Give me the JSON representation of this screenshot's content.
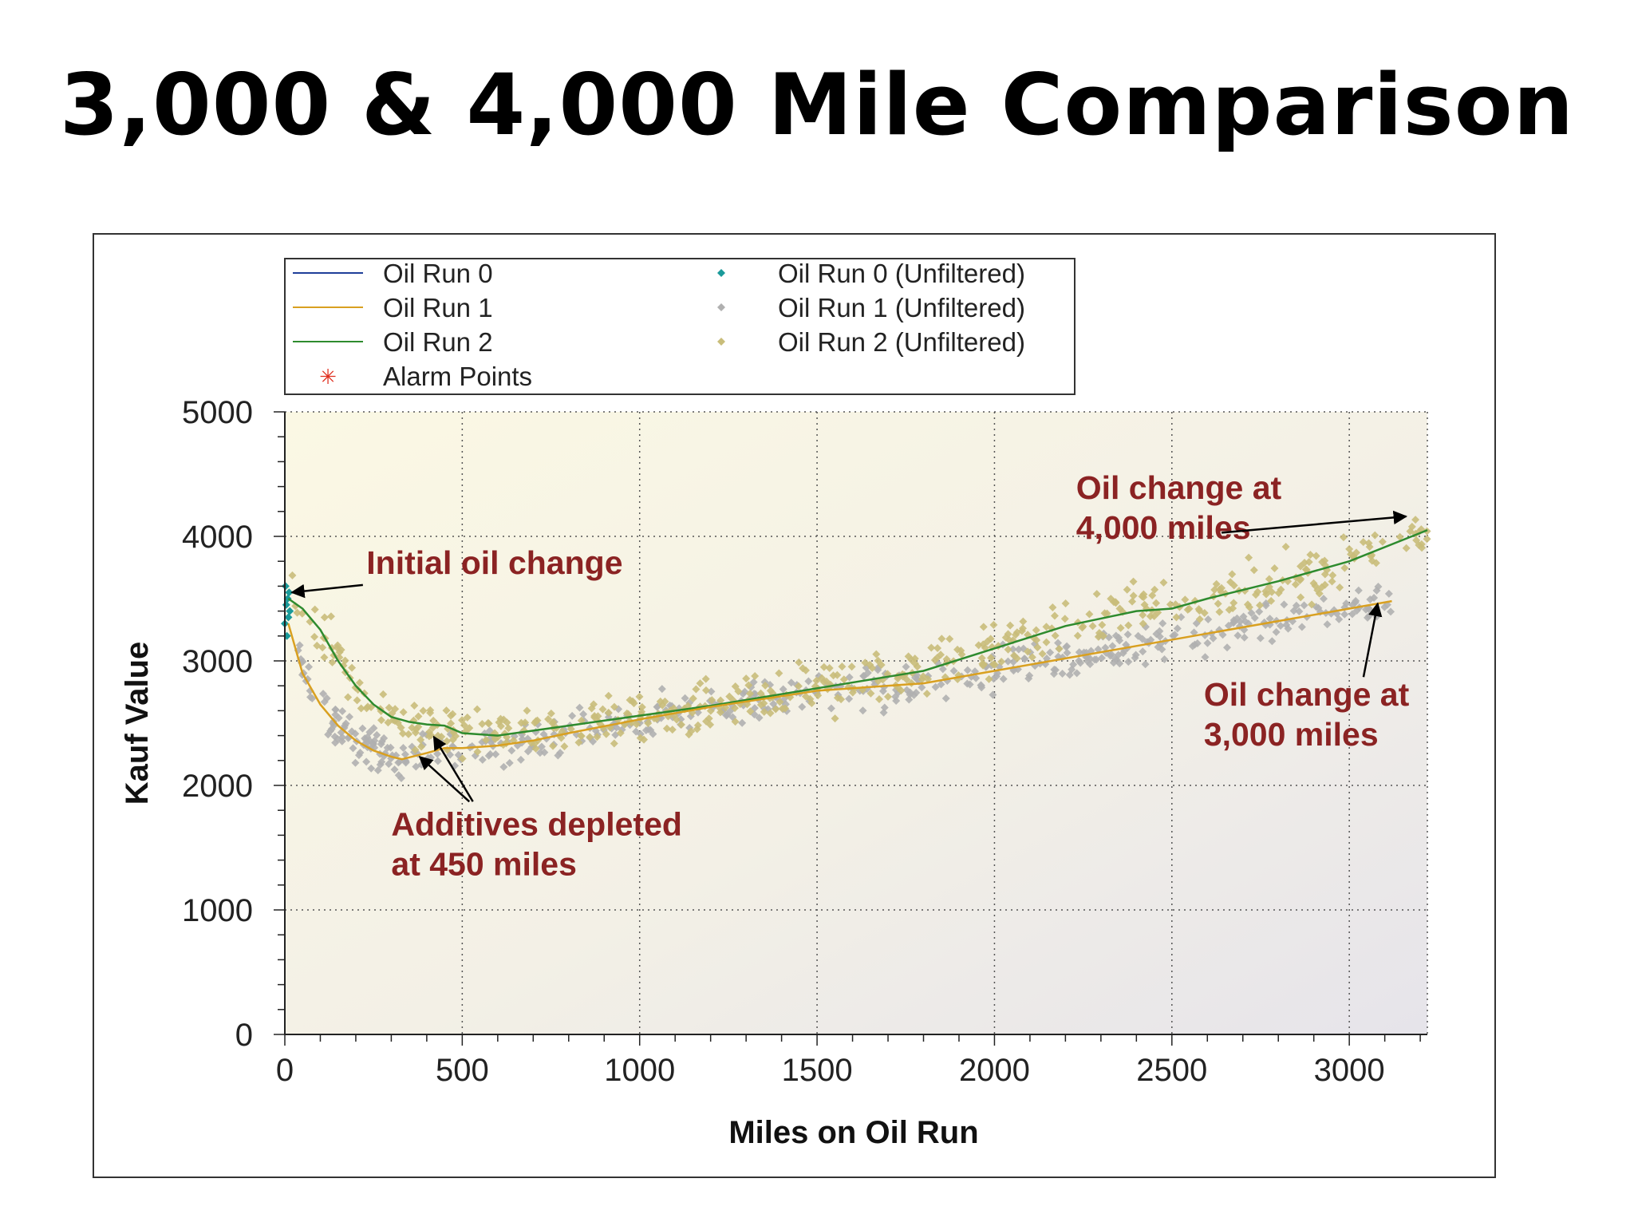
{
  "title": "3,000 & 4,000 Mile Comparison",
  "chart_data": {
    "type": "scatter",
    "xlabel": "Miles on Oil Run",
    "ylabel": "Kauf Value",
    "xlim": [
      0,
      3220
    ],
    "ylim": [
      0,
      5000
    ],
    "x_ticks": [
      0,
      500,
      1000,
      1500,
      2000,
      2500,
      3000
    ],
    "y_ticks": [
      0,
      1000,
      2000,
      3000,
      4000,
      5000
    ],
    "grid": true,
    "legend_position": "top",
    "legend": [
      {
        "label": "Oil Run 0",
        "kind": "line",
        "color": "#1f3f99"
      },
      {
        "label": "Oil Run 1",
        "kind": "line",
        "color": "#d9a020"
      },
      {
        "label": "Oil Run 2",
        "kind": "line",
        "color": "#2e8b2e"
      },
      {
        "label": "Alarm Points",
        "kind": "star",
        "color": "#e03020"
      },
      {
        "label": "Oil Run 0 (Unfiltered)",
        "kind": "diamond",
        "color": "#1a9a9a"
      },
      {
        "label": "Oil Run 1 (Unfiltered)",
        "kind": "diamond",
        "color": "#b0b0b0"
      },
      {
        "label": "Oil Run 2 (Unfiltered)",
        "kind": "diamond",
        "color": "#c9bd7a"
      }
    ],
    "series": [
      {
        "name": "Oil Run 0 (Unfiltered)",
        "color": "#1a9a9a",
        "x": [
          0,
          2,
          4,
          6,
          8,
          10,
          12,
          14
        ],
        "y": [
          3300,
          3600,
          3450,
          3200,
          3500,
          3350,
          3550,
          3400
        ]
      },
      {
        "name": "Oil Run 2",
        "color": "#2e8b2e",
        "x": [
          10,
          50,
          100,
          150,
          200,
          250,
          300,
          350,
          400,
          450,
          500,
          600,
          700,
          800,
          1000,
          1200,
          1500,
          1800,
          2000,
          2200,
          2400,
          2500,
          2600,
          2800,
          3000,
          3220
        ],
        "y": [
          3500,
          3420,
          3250,
          3000,
          2800,
          2650,
          2550,
          2510,
          2490,
          2480,
          2420,
          2400,
          2440,
          2480,
          2560,
          2640,
          2780,
          2920,
          3100,
          3280,
          3400,
          3420,
          3500,
          3640,
          3800,
          4050
        ]
      },
      {
        "name": "Oil Run 1",
        "color": "#d9a020",
        "x": [
          10,
          50,
          100,
          150,
          200,
          250,
          300,
          330,
          400,
          450,
          500,
          600,
          700,
          800,
          1000,
          1200,
          1500,
          1800,
          2000,
          2200,
          2400,
          2600,
          2800,
          3000,
          3120
        ],
        "y": [
          3300,
          2900,
          2650,
          2480,
          2360,
          2280,
          2230,
          2210,
          2260,
          2300,
          2300,
          2320,
          2360,
          2420,
          2530,
          2630,
          2760,
          2820,
          2920,
          3020,
          3120,
          3220,
          3320,
          3420,
          3480
        ]
      }
    ],
    "scatter_bands": [
      {
        "name": "Oil Run 1 (Unfiltered)",
        "color": "#b0b0b0",
        "x_range": [
          20,
          3120
        ],
        "spread": 170,
        "x": [
          10,
          50,
          100,
          150,
          200,
          250,
          300,
          330,
          400,
          450,
          500,
          600,
          700,
          800,
          1000,
          1200,
          1500,
          1800,
          2000,
          2200,
          2400,
          2600,
          2800,
          3000,
          3120
        ],
        "y": [
          3300,
          2900,
          2650,
          2480,
          2360,
          2280,
          2230,
          2210,
          2260,
          2300,
          2300,
          2320,
          2360,
          2420,
          2530,
          2630,
          2760,
          2820,
          2920,
          3020,
          3120,
          3220,
          3320,
          3420,
          3480
        ]
      },
      {
        "name": "Oil Run 2 (Unfiltered)",
        "color": "#c9bd7a",
        "x_range": [
          20,
          3220
        ],
        "spread": 220,
        "x": [
          10,
          50,
          100,
          150,
          200,
          250,
          300,
          350,
          400,
          450,
          500,
          600,
          700,
          800,
          1000,
          1200,
          1500,
          1800,
          2000,
          2200,
          2400,
          2500,
          2600,
          2800,
          3000,
          3220
        ],
        "y": [
          3500,
          3420,
          3250,
          3000,
          2800,
          2650,
          2550,
          2510,
          2490,
          2480,
          2420,
          2400,
          2440,
          2480,
          2560,
          2640,
          2780,
          2920,
          3100,
          3280,
          3400,
          3420,
          3500,
          3640,
          3800,
          4050
        ]
      }
    ],
    "annotations": [
      {
        "lines": [
          "Initial oil change"
        ],
        "x": 230,
        "y": 3700,
        "arrows": [
          {
            "from": [
              220,
              3610
            ],
            "to": [
              20,
              3550
            ]
          }
        ]
      },
      {
        "lines": [
          "Additives depleted",
          "at 450 miles"
        ],
        "x": 300,
        "y": 1600,
        "arrows": [
          {
            "from": [
              520,
              1870
            ],
            "to": [
              380,
              2230
            ]
          },
          {
            "from": [
              530,
              1870
            ],
            "to": [
              420,
              2390
            ]
          }
        ]
      },
      {
        "lines": [
          "Oil change at",
          "4,000 miles"
        ],
        "x": 2230,
        "y": 4300,
        "arrows": [
          {
            "from": [
              2640,
              4030
            ],
            "to": [
              3160,
              4160
            ]
          }
        ]
      },
      {
        "lines": [
          "Oil change at",
          "3,000 miles"
        ],
        "x": 2590,
        "y": 2640,
        "arrows": [
          {
            "from": [
              3040,
              2870
            ],
            "to": [
              3080,
              3460
            ]
          }
        ]
      }
    ]
  }
}
